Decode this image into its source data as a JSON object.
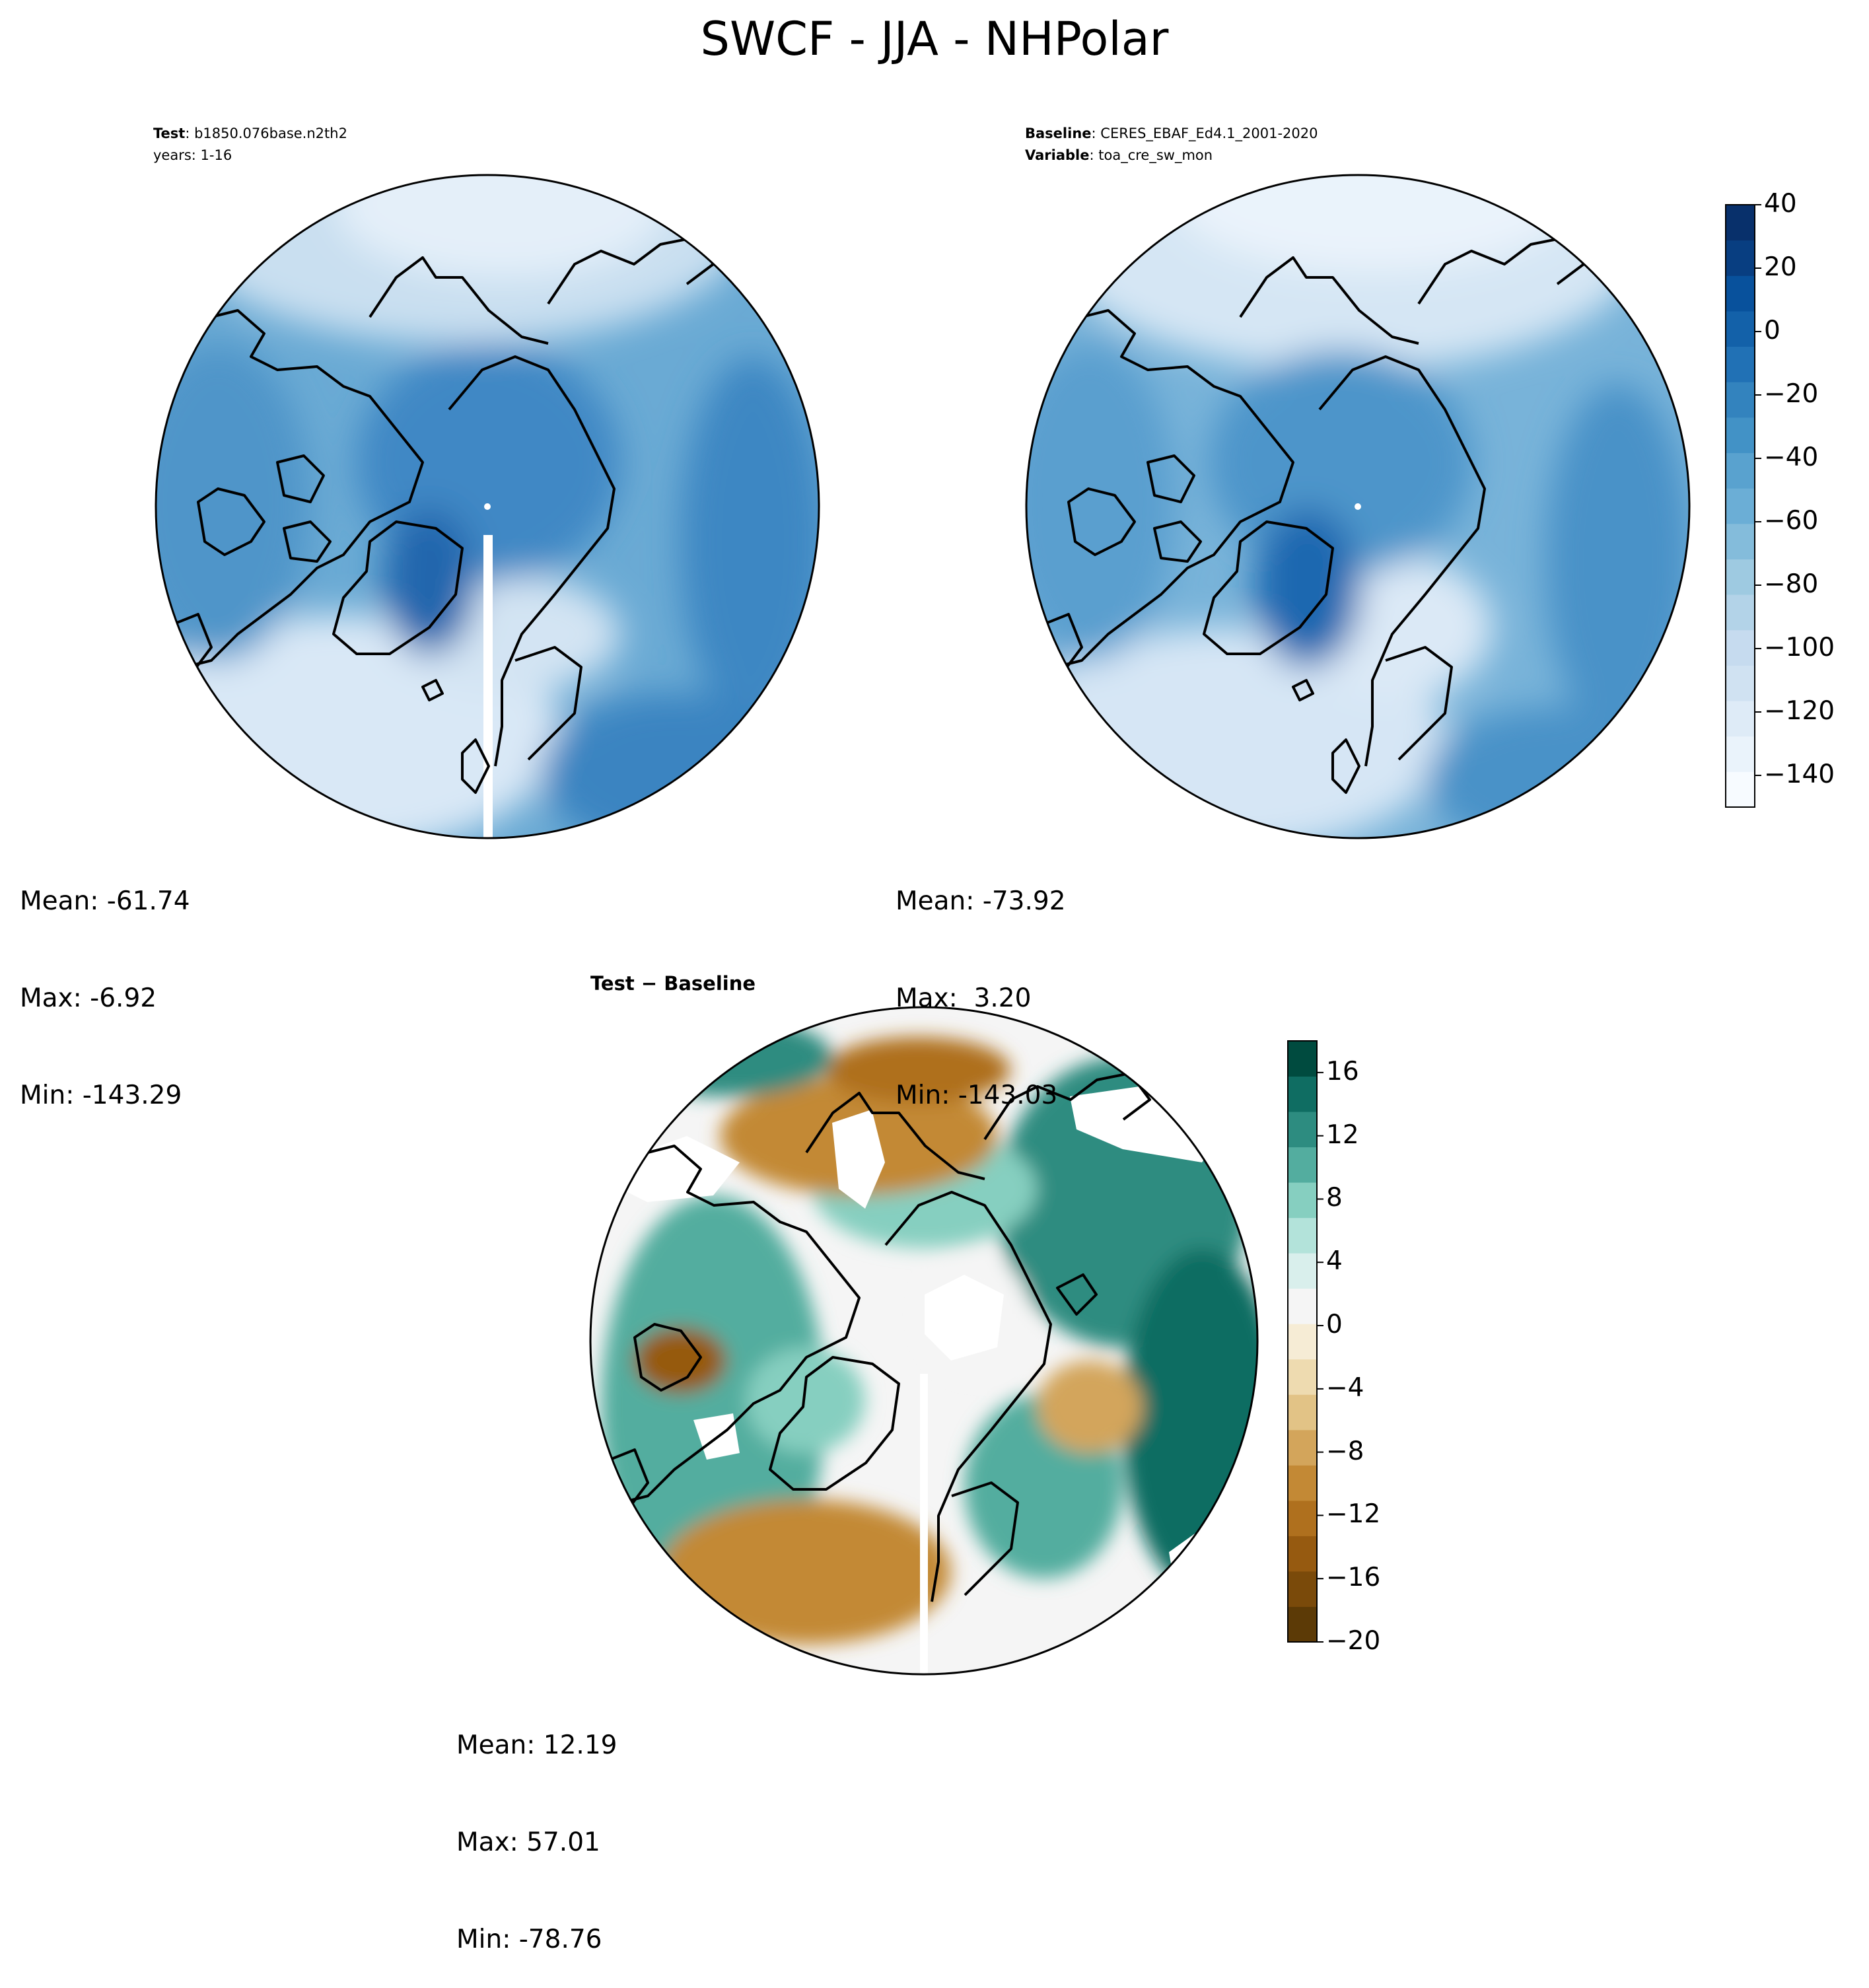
{
  "title": "SWCF - JJA - NHPolar",
  "panels": {
    "test": {
      "label": "Test",
      "value": "b1850.076base.n2th2",
      "line2": "years: 1-16",
      "mean": "Mean: -61.74",
      "max": "Max: -6.92",
      "min": "Min: -143.29"
    },
    "baseline": {
      "label": "Baseline",
      "value": "CERES_EBAF_Ed4.1_2001-2020",
      "label2": "Variable",
      "value2": "toa_cre_sw_mon",
      "mean": "Mean: -73.92",
      "max": "Max:  3.20",
      "min": "Min: -143.03"
    },
    "diff": {
      "label": "Test − Baseline",
      "mean": "Mean: 12.19",
      "max": "Max: 57.01",
      "min": "Min: -78.76"
    }
  },
  "colorbars": {
    "main": {
      "colormap": "Blues (reversed)",
      "range": [
        -150,
        40
      ],
      "ticks": [
        "40",
        "20",
        "0",
        "−20",
        "−40",
        "−60",
        "−80",
        "−100",
        "−120",
        "−140"
      ],
      "colors": [
        "#f7fbff",
        "#eaf3fb",
        "#deebf7",
        "#d0e2f2",
        "#c6dbef",
        "#b3d3e8",
        "#9ecae1",
        "#84bcdb",
        "#6baed6",
        "#59a2cf",
        "#4292c6",
        "#3383be",
        "#2171b5",
        "#1361a9",
        "#08519c",
        "#083e81",
        "#08306b"
      ]
    },
    "diff": {
      "colormap": "BrBG",
      "range": [
        -20,
        18
      ],
      "ticks": [
        "16",
        "12",
        "8",
        "4",
        "0",
        "−4",
        "−8",
        "−12",
        "−16",
        "−20"
      ],
      "colors": [
        "#5c3a06",
        "#7a4a0a",
        "#965a10",
        "#af701e",
        "#c38935",
        "#d3a55b",
        "#e2c386",
        "#eedbb0",
        "#f6ecd5",
        "#f5f5f5",
        "#d9efec",
        "#b3e3da",
        "#86cfc0",
        "#53ad9f",
        "#2d8c80",
        "#0f6d62",
        "#004b3f"
      ]
    }
  }
}
